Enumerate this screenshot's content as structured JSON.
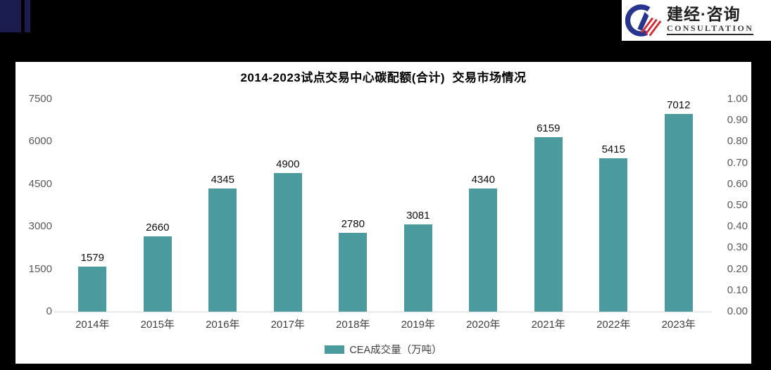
{
  "header": {
    "logo": {
      "cn": "建经·咨询",
      "en": "CONSULTATION"
    },
    "logo_colors": {
      "blue": "#27358f",
      "red": "#d22630"
    }
  },
  "chart_data": {
    "type": "bar",
    "title": "2014-2023试点交易中心碳配额(合计)  交易市场情况",
    "categories": [
      "2014年",
      "2015年",
      "2016年",
      "2017年",
      "2018年",
      "2019年",
      "2020年",
      "2021年",
      "2022年",
      "2023年"
    ],
    "series": [
      {
        "name": "CEA成交量（万吨）",
        "values": [
          1579,
          2660,
          4345,
          4900,
          2780,
          3081,
          4340,
          6159,
          5415,
          7012
        ]
      }
    ],
    "bar_color": "#4a9a9e",
    "grid": false,
    "legend_position": "bottom",
    "axes": {
      "left": {
        "min": 0,
        "max": 7500,
        "ticks": [
          0,
          1500,
          3000,
          4500,
          6000,
          7500
        ]
      },
      "right": {
        "min": 0,
        "max": 1,
        "ticks": [
          "0.00",
          "0.10",
          "0.20",
          "0.30",
          "0.40",
          "0.50",
          "0.60",
          "0.70",
          "0.80",
          "0.90",
          "1.00"
        ]
      }
    }
  }
}
